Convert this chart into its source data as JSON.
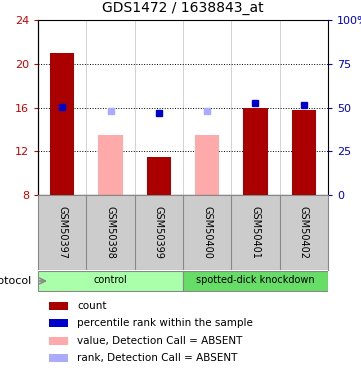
{
  "title": "GDS1472 / 1638843_at",
  "samples": [
    "GSM50397",
    "GSM50398",
    "GSM50399",
    "GSM50400",
    "GSM50401",
    "GSM50402"
  ],
  "bar_values": [
    21.0,
    null,
    11.5,
    null,
    16.0,
    15.8
  ],
  "bar_colors_present": "#aa0000",
  "bar_colors_absent": "#ffaaaa",
  "rank_values": [
    50.5,
    null,
    47.0,
    null,
    52.5,
    51.5
  ],
  "rank_colors_present": "#0000cc",
  "rank_absent_values": [
    null,
    48.0,
    null,
    48.0,
    null,
    null
  ],
  "rank_absent_color": "#aaaaff",
  "absent_bar_values": [
    null,
    13.5,
    null,
    13.5,
    null,
    null
  ],
  "ylim_left": [
    8,
    24
  ],
  "ylim_right": [
    0,
    100
  ],
  "yticks_left": [
    8,
    12,
    16,
    20,
    24
  ],
  "yticks_right": [
    0,
    25,
    50,
    75,
    100
  ],
  "ytick_labels_right": [
    "0",
    "25",
    "50",
    "75",
    "100%"
  ],
  "groups": [
    {
      "label": "control",
      "samples_idx": [
        0,
        1,
        2
      ],
      "color": "#aaffaa"
    },
    {
      "label": "spotted-dick knockdown",
      "samples_idx": [
        3,
        4,
        5
      ],
      "color": "#66dd66"
    }
  ],
  "protocol_label": "protocol",
  "legend_items": [
    {
      "color": "#aa0000",
      "label": "count"
    },
    {
      "color": "#0000cc",
      "label": "percentile rank within the sample"
    },
    {
      "color": "#ffaaaa",
      "label": "value, Detection Call = ABSENT"
    },
    {
      "color": "#aaaaff",
      "label": "rank, Detection Call = ABSENT"
    }
  ],
  "tick_color_left": "#cc0000",
  "tick_color_right": "#0000cc",
  "bar_width": 0.5,
  "sample_label_bg": "#cccccc",
  "sample_label_border": "#888888"
}
